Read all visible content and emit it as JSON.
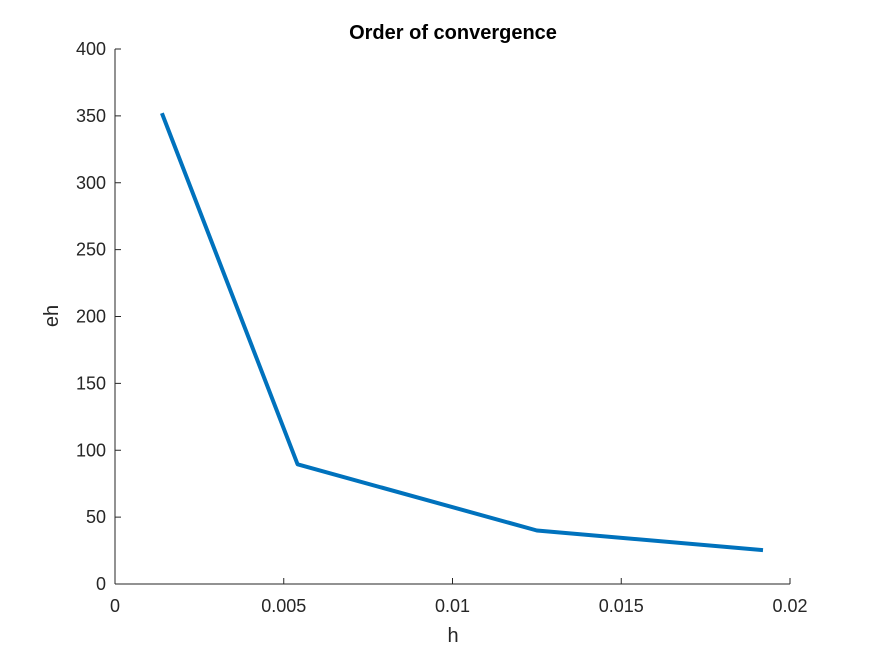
{
  "chart_data": {
    "type": "line",
    "title": "Order of convergence",
    "xlabel": "h",
    "ylabel": "eh",
    "xlim": [
      0,
      0.02
    ],
    "ylim": [
      0,
      400
    ],
    "xticks": [
      0,
      0.005,
      0.01,
      0.015,
      0.02
    ],
    "xtick_labels": [
      "0",
      "0.005",
      "0.01",
      "0.015",
      "0.02"
    ],
    "yticks": [
      0,
      50,
      100,
      150,
      200,
      250,
      300,
      350,
      400
    ],
    "ytick_labels": [
      "0",
      "50",
      "100",
      "150",
      "200",
      "250",
      "300",
      "350",
      "400"
    ],
    "grid": false,
    "legend": "none",
    "series": [
      {
        "x": [
          0.00139,
          0.00541,
          0.0125,
          0.0192
        ],
        "y": [
          352,
          89.5,
          40,
          25.3
        ],
        "color": "#0072bd"
      }
    ]
  }
}
